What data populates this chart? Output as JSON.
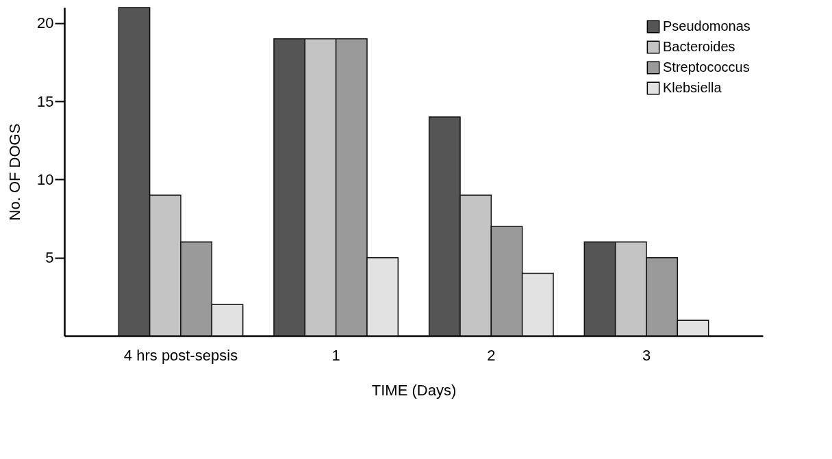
{
  "chart_data": {
    "type": "bar",
    "xlabel": "TIME (Days)",
    "ylabel": "No. OF DOGS",
    "categories": [
      "4 hrs post-sepsis",
      "1",
      "2",
      "3"
    ],
    "series": [
      {
        "name": "Pseudomonas",
        "color": "#555555",
        "values": [
          21,
          19,
          14,
          6
        ]
      },
      {
        "name": "Bacteroides",
        "color": "#c4c4c4",
        "values": [
          9,
          19,
          9,
          6
        ]
      },
      {
        "name": "Streptococcus",
        "color": "#9a9a9a",
        "values": [
          6,
          19,
          7,
          5
        ]
      },
      {
        "name": "Klebsiella",
        "color": "#e2e2e2",
        "values": [
          2,
          5,
          4,
          1
        ]
      }
    ],
    "ylim": [
      0,
      21
    ],
    "yticks": [
      5,
      10,
      15,
      20
    ],
    "grid": false,
    "legend": "top right"
  }
}
